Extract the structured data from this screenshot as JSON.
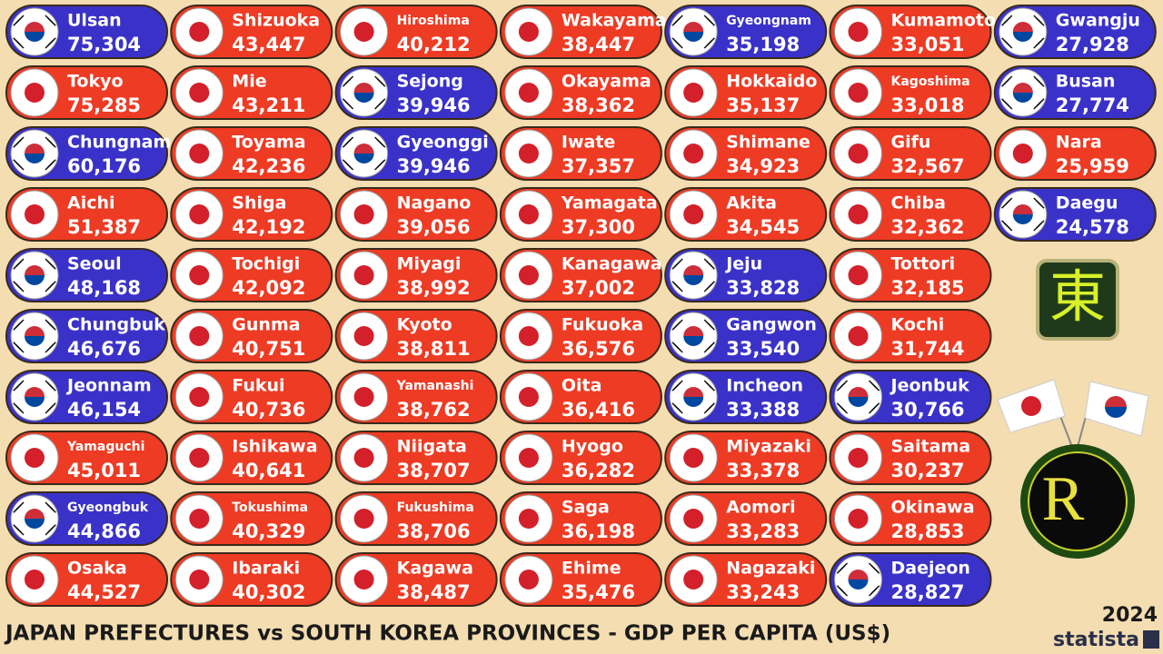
{
  "title": "JAPAN PREFECTURES vs SOUTH KOREA PROVINCES - GDP PER CAPITA (US$)",
  "year": "2024",
  "brand": "statista",
  "logos": {
    "top": "東",
    "bottom": "R"
  },
  "items": [
    {
      "name": "Ulsan",
      "value": "75,304",
      "color": "#3a32c8"
    },
    {
      "name": "Tokyo",
      "value": "75,285",
      "color": "#ee3b24"
    },
    {
      "name": "Chungnam",
      "value": "60,176",
      "color": "#3a32c8"
    },
    {
      "name": "Aichi",
      "value": "51,387",
      "color": "#ee3b24"
    },
    {
      "name": "Seoul",
      "value": "48,168",
      "color": "#3a32c8"
    },
    {
      "name": "Chungbuk",
      "value": "46,676",
      "color": "#3a32c8"
    },
    {
      "name": "Jeonnam",
      "value": "46,154",
      "color": "#3a32c8"
    },
    {
      "name": "Yamaguchi",
      "value": "45,011",
      "color": "#ee3b24"
    },
    {
      "name": "Gyeongbuk",
      "value": "44,866",
      "color": "#3a32c8"
    },
    {
      "name": "Osaka",
      "value": "44,527",
      "color": "#ee3b24"
    },
    {
      "name": "Shizuoka",
      "value": "43,447",
      "color": "#ee3b24"
    },
    {
      "name": "Mie",
      "value": "43,211",
      "color": "#ee3b24"
    },
    {
      "name": "Toyama",
      "value": "42,236",
      "color": "#ee3b24"
    },
    {
      "name": "Shiga",
      "value": "42,192",
      "color": "#ee3b24"
    },
    {
      "name": "Tochigi",
      "value": "42,092",
      "color": "#ee3b24"
    },
    {
      "name": "Gunma",
      "value": "40,751",
      "color": "#ee3b24"
    },
    {
      "name": "Fukui",
      "value": "40,736",
      "color": "#ee3b24"
    },
    {
      "name": "Ishikawa",
      "value": "40,641",
      "color": "#ee3b24"
    },
    {
      "name": "Tokushima",
      "value": "40,329",
      "color": "#ee3b24"
    },
    {
      "name": "Ibaraki",
      "value": "40,302",
      "color": "#ee3b24"
    },
    {
      "name": "Hiroshima",
      "value": "40,212",
      "color": "#ee3b24"
    },
    {
      "name": "Sejong",
      "value": "39,946",
      "color": "#3a32c8"
    },
    {
      "name": "Gyeonggi",
      "value": "39,946",
      "color": "#3a32c8"
    },
    {
      "name": "Nagano",
      "value": "39,056",
      "color": "#ee3b24"
    },
    {
      "name": "Miyagi",
      "value": "38,992",
      "color": "#ee3b24"
    },
    {
      "name": "Kyoto",
      "value": "38,811",
      "color": "#ee3b24"
    },
    {
      "name": "Yamanashi",
      "value": "38,762",
      "color": "#ee3b24"
    },
    {
      "name": "Niigata",
      "value": "38,707",
      "color": "#ee3b24"
    },
    {
      "name": "Fukushima",
      "value": "38,706",
      "color": "#ee3b24"
    },
    {
      "name": "Kagawa",
      "value": "38,487",
      "color": "#ee3b24"
    },
    {
      "name": "Wakayama",
      "value": "38,447",
      "color": "#ee3b24"
    },
    {
      "name": "Okayama",
      "value": "38,362",
      "color": "#ee3b24"
    },
    {
      "name": "Iwate",
      "value": "37,357",
      "color": "#ee3b24"
    },
    {
      "name": "Yamagata",
      "value": "37,300",
      "color": "#ee3b24"
    },
    {
      "name": "Kanagawa",
      "value": "37,002",
      "color": "#ee3b24"
    },
    {
      "name": "Fukuoka",
      "value": "36,576",
      "color": "#ee3b24"
    },
    {
      "name": "Oita",
      "value": "36,416",
      "color": "#ee3b24"
    },
    {
      "name": "Hyogo",
      "value": "36,282",
      "color": "#ee3b24"
    },
    {
      "name": "Saga",
      "value": "36,198",
      "color": "#ee3b24"
    },
    {
      "name": "Ehime",
      "value": "35,476",
      "color": "#ee3b24"
    },
    {
      "name": "Gyeongnam",
      "value": "35,198",
      "color": "#3a32c8"
    },
    {
      "name": "Hokkaido",
      "value": "35,137",
      "color": "#ee3b24"
    },
    {
      "name": "Shimane",
      "value": "34,923",
      "color": "#ee3b24"
    },
    {
      "name": "Akita",
      "value": "34,545",
      "color": "#ee3b24"
    },
    {
      "name": "Jeju",
      "value": "33,828",
      "color": "#3a32c8"
    },
    {
      "name": "Gangwon",
      "value": "33,540",
      "color": "#3a32c8"
    },
    {
      "name": "Incheon",
      "value": "33,388",
      "color": "#3a32c8"
    },
    {
      "name": "Miyazaki",
      "value": "33,378",
      "color": "#ee3b24"
    },
    {
      "name": "Aomori",
      "value": "33,283",
      "color": "#ee3b24"
    },
    {
      "name": "Nagazaki",
      "value": "33,243",
      "color": "#ee3b24"
    },
    {
      "name": "Kumamoto",
      "value": "33,051",
      "color": "#ee3b24"
    },
    {
      "name": "Kagoshima",
      "value": "33,018",
      "color": "#ee3b24"
    },
    {
      "name": "Gifu",
      "value": "32,567",
      "color": "#ee3b24"
    },
    {
      "name": "Chiba",
      "value": "32,362",
      "color": "#ee3b24"
    },
    {
      "name": "Tottori",
      "value": "32,185",
      "color": "#ee3b24"
    },
    {
      "name": "Kochi",
      "value": "31,744",
      "color": "#ee3b24"
    },
    {
      "name": "Jeonbuk",
      "value": "30,766",
      "color": "#3a32c8"
    },
    {
      "name": "Saitama",
      "value": "30,237",
      "color": "#ee3b24"
    },
    {
      "name": "Okinawa",
      "value": "28,853",
      "color": "#ee3b24"
    },
    {
      "name": "Daejeon",
      "value": "28,827",
      "color": "#3a32c8"
    },
    {
      "name": "Gwangju",
      "value": "27,928",
      "color": "#3a32c8"
    },
    {
      "name": "Busan",
      "value": "27,774",
      "color": "#3a32c8"
    },
    {
      "name": "Nara",
      "value": "25,959",
      "color": "#ee3b24"
    },
    {
      "name": "Daegu",
      "value": "24,578",
      "color": "#3a32c8"
    }
  ]
}
